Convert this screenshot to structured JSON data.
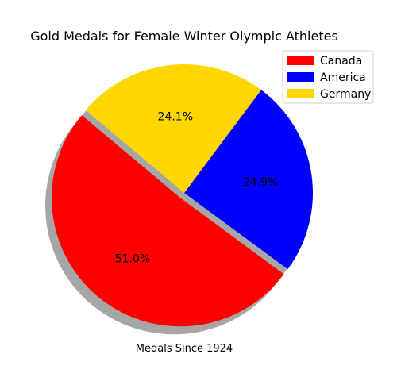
{
  "chart_data": {
    "type": "pie",
    "title": "Gold Medals for Female Winter Olympic Athletes",
    "xlabel": "Medals Since 1924",
    "categories": [
      "Canada",
      "America",
      "Germany"
    ],
    "values": [
      51.0,
      24.9,
      24.1
    ],
    "labels": [
      "51.0%",
      "24.9%",
      "24.1%"
    ],
    "colors": [
      "#ff0000",
      "#0000ff",
      "#ffd700"
    ],
    "legend_position": "top-right",
    "shadow": true,
    "exploded": "Canada"
  }
}
